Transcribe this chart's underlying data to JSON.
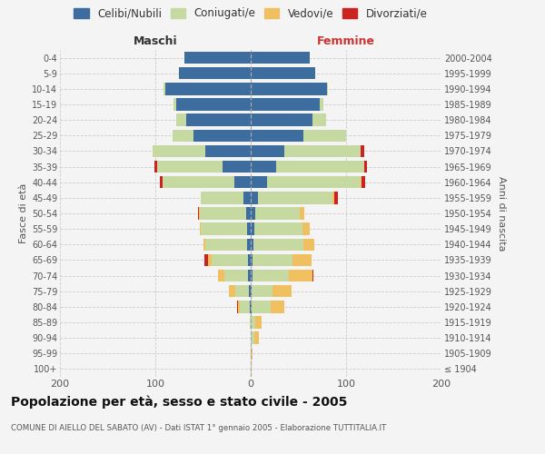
{
  "age_groups": [
    "100+",
    "95-99",
    "90-94",
    "85-89",
    "80-84",
    "75-79",
    "70-74",
    "65-69",
    "60-64",
    "55-59",
    "50-54",
    "45-49",
    "40-44",
    "35-39",
    "30-34",
    "25-29",
    "20-24",
    "15-19",
    "10-14",
    "5-9",
    "0-4"
  ],
  "birth_years": [
    "≤ 1904",
    "1905-1909",
    "1910-1914",
    "1915-1919",
    "1920-1924",
    "1925-1929",
    "1930-1934",
    "1935-1939",
    "1940-1944",
    "1945-1949",
    "1950-1954",
    "1955-1959",
    "1960-1964",
    "1965-1969",
    "1970-1974",
    "1975-1979",
    "1980-1984",
    "1985-1989",
    "1990-1994",
    "1995-1999",
    "2000-2004"
  ],
  "bar_color_celibi": "#3d6d9e",
  "bar_color_coniugati": "#c5d9a0",
  "bar_color_vedovi": "#f0c060",
  "bar_color_divorziati": "#cc2222",
  "maschi_celibi": [
    0,
    0,
    0,
    0,
    1,
    2,
    3,
    3,
    4,
    4,
    5,
    8,
    17,
    30,
    48,
    60,
    68,
    78,
    90,
    75,
    70
  ],
  "maschi_coniugati": [
    0,
    0,
    0,
    1,
    10,
    14,
    25,
    38,
    44,
    48,
    48,
    44,
    75,
    68,
    55,
    22,
    10,
    3,
    1,
    0,
    0
  ],
  "maschi_vedovi": [
    0,
    0,
    0,
    0,
    2,
    7,
    6,
    4,
    2,
    1,
    1,
    0,
    0,
    0,
    0,
    0,
    0,
    0,
    0,
    0,
    0
  ],
  "maschi_divorziati": [
    0,
    0,
    0,
    0,
    1,
    0,
    0,
    4,
    0,
    0,
    1,
    0,
    3,
    3,
    0,
    0,
    0,
    0,
    0,
    0,
    0
  ],
  "femmine_celibi": [
    0,
    0,
    0,
    0,
    1,
    1,
    2,
    2,
    3,
    4,
    5,
    8,
    17,
    27,
    35,
    55,
    65,
    72,
    80,
    68,
    62
  ],
  "femmine_coniugati": [
    0,
    1,
    4,
    5,
    20,
    22,
    38,
    42,
    52,
    50,
    46,
    78,
    98,
    92,
    80,
    45,
    14,
    4,
    1,
    0,
    0
  ],
  "femmine_vedovi": [
    1,
    1,
    5,
    6,
    14,
    20,
    25,
    20,
    12,
    8,
    5,
    2,
    1,
    0,
    0,
    0,
    0,
    0,
    0,
    0,
    0
  ],
  "femmine_divorziati": [
    0,
    0,
    0,
    0,
    0,
    0,
    1,
    0,
    0,
    0,
    0,
    3,
    4,
    3,
    4,
    0,
    0,
    0,
    0,
    0,
    0
  ],
  "xlim": 200,
  "title": "Popolazione per età, sesso e stato civile - 2005",
  "subtitle": "COMUNE DI AIELLO DEL SABATO (AV) - Dati ISTAT 1° gennaio 2005 - Elaborazione TUTTITALIA.IT",
  "ylabel_left": "Fasce di età",
  "ylabel_right": "Anni di nascita",
  "xlabel_maschi": "Maschi",
  "xlabel_femmine": "Femmine",
  "legend_labels": [
    "Celibi/Nubili",
    "Coniugati/e",
    "Vedovi/e",
    "Divorziati/e"
  ],
  "bg_color": "#f4f4f4"
}
